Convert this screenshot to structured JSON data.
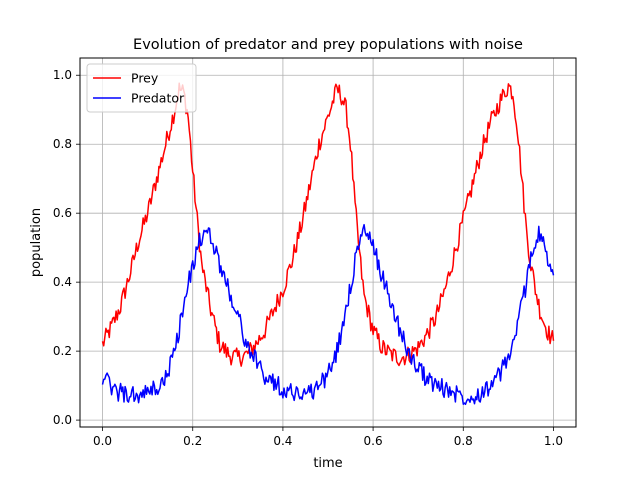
{
  "chart_data": {
    "type": "line",
    "title": "Evolution of predator and prey populations with noise",
    "xlabel": "time",
    "ylabel": "population",
    "xlim": [
      -0.05,
      1.05
    ],
    "ylim": [
      -0.02,
      1.05
    ],
    "xticks": [
      0.0,
      0.2,
      0.4,
      0.6,
      0.8,
      1.0
    ],
    "xtick_labels": [
      "0.0",
      "0.2",
      "0.4",
      "0.6",
      "0.8",
      "1.0"
    ],
    "yticks": [
      0.0,
      0.2,
      0.4,
      0.6,
      0.8,
      1.0
    ],
    "ytick_labels": [
      "0.0",
      "0.2",
      "0.4",
      "0.6",
      "0.8",
      "1.0"
    ],
    "grid": true,
    "legend_position": "upper-left",
    "series": [
      {
        "name": "Prey",
        "color": "#ff0000",
        "x": [
          0.0,
          0.02,
          0.04,
          0.06,
          0.08,
          0.1,
          0.12,
          0.14,
          0.16,
          0.17,
          0.18,
          0.19,
          0.2,
          0.21,
          0.22,
          0.24,
          0.26,
          0.28,
          0.3,
          0.32,
          0.34,
          0.36,
          0.38,
          0.4,
          0.42,
          0.44,
          0.46,
          0.48,
          0.5,
          0.52,
          0.53,
          0.54,
          0.55,
          0.56,
          0.57,
          0.58,
          0.6,
          0.62,
          0.64,
          0.66,
          0.68,
          0.7,
          0.72,
          0.74,
          0.76,
          0.78,
          0.8,
          0.82,
          0.84,
          0.86,
          0.88,
          0.9,
          0.91,
          0.92,
          0.93,
          0.94,
          0.95,
          0.96,
          0.97,
          0.98,
          0.99,
          1.0
        ],
        "y": [
          0.22,
          0.27,
          0.33,
          0.42,
          0.52,
          0.6,
          0.7,
          0.8,
          0.9,
          0.96,
          0.95,
          0.88,
          0.72,
          0.58,
          0.45,
          0.32,
          0.22,
          0.19,
          0.18,
          0.19,
          0.22,
          0.26,
          0.32,
          0.38,
          0.46,
          0.56,
          0.68,
          0.8,
          0.88,
          0.96,
          0.94,
          0.9,
          0.8,
          0.62,
          0.48,
          0.36,
          0.26,
          0.21,
          0.19,
          0.18,
          0.19,
          0.21,
          0.25,
          0.3,
          0.38,
          0.48,
          0.58,
          0.68,
          0.78,
          0.86,
          0.92,
          0.97,
          0.95,
          0.85,
          0.7,
          0.55,
          0.45,
          0.38,
          0.32,
          0.28,
          0.25,
          0.23
        ]
      },
      {
        "name": "Predator",
        "color": "#0000ff",
        "x": [
          0.0,
          0.02,
          0.04,
          0.06,
          0.08,
          0.1,
          0.12,
          0.14,
          0.16,
          0.18,
          0.2,
          0.21,
          0.22,
          0.23,
          0.24,
          0.25,
          0.26,
          0.28,
          0.3,
          0.32,
          0.34,
          0.36,
          0.38,
          0.4,
          0.42,
          0.44,
          0.46,
          0.48,
          0.5,
          0.52,
          0.54,
          0.56,
          0.57,
          0.58,
          0.59,
          0.6,
          0.62,
          0.64,
          0.66,
          0.68,
          0.7,
          0.72,
          0.74,
          0.76,
          0.78,
          0.8,
          0.82,
          0.84,
          0.86,
          0.88,
          0.9,
          0.92,
          0.94,
          0.95,
          0.96,
          0.97,
          0.98,
          0.99,
          1.0
        ],
        "y": [
          0.13,
          0.09,
          0.08,
          0.07,
          0.07,
          0.08,
          0.09,
          0.12,
          0.2,
          0.33,
          0.45,
          0.5,
          0.53,
          0.54,
          0.53,
          0.5,
          0.45,
          0.38,
          0.3,
          0.22,
          0.17,
          0.13,
          0.11,
          0.09,
          0.08,
          0.08,
          0.08,
          0.1,
          0.13,
          0.2,
          0.32,
          0.46,
          0.52,
          0.55,
          0.53,
          0.5,
          0.42,
          0.34,
          0.26,
          0.19,
          0.15,
          0.12,
          0.1,
          0.09,
          0.08,
          0.07,
          0.07,
          0.08,
          0.1,
          0.13,
          0.18,
          0.27,
          0.4,
          0.48,
          0.52,
          0.54,
          0.5,
          0.45,
          0.42
        ]
      }
    ]
  }
}
